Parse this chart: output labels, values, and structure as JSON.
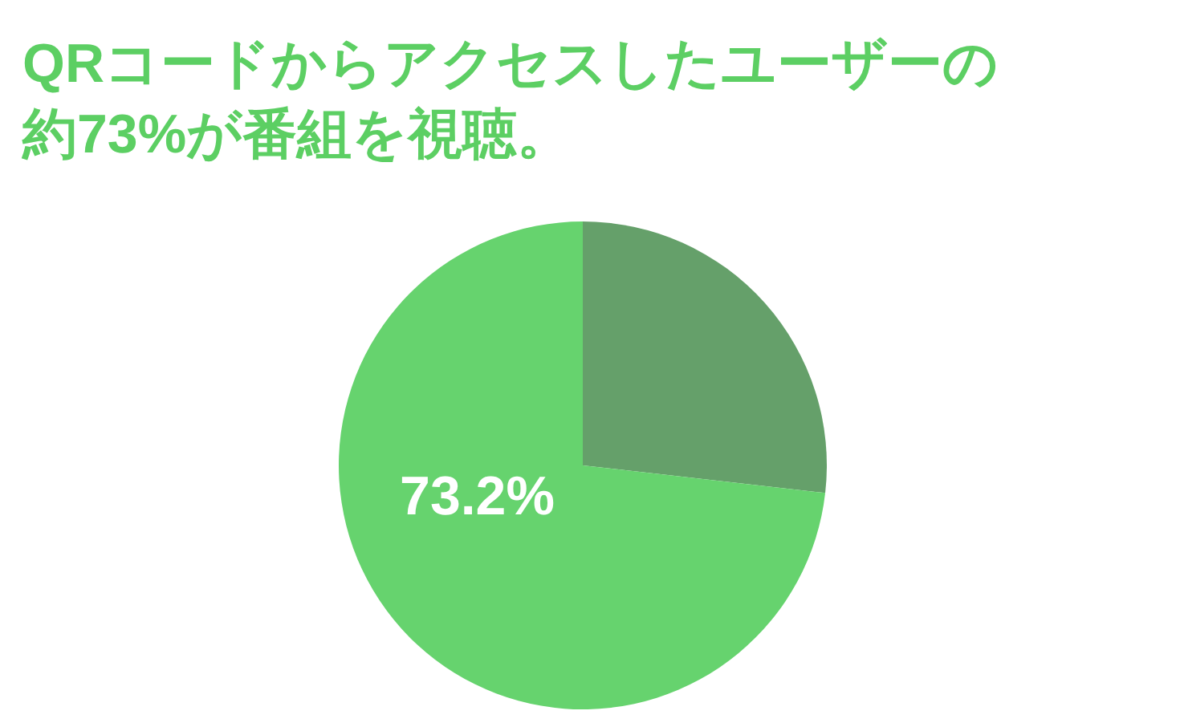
{
  "chart_data": {
    "type": "pie",
    "title": "QRコードからアクセスしたユーザーの約73%が番組を視聴。",
    "categories": [
      null,
      null
    ],
    "values": [
      26.8,
      73.2
    ],
    "colors": [
      "#65a06a",
      "#66d36e"
    ],
    "value_labels": [
      null,
      "73.2%"
    ]
  }
}
